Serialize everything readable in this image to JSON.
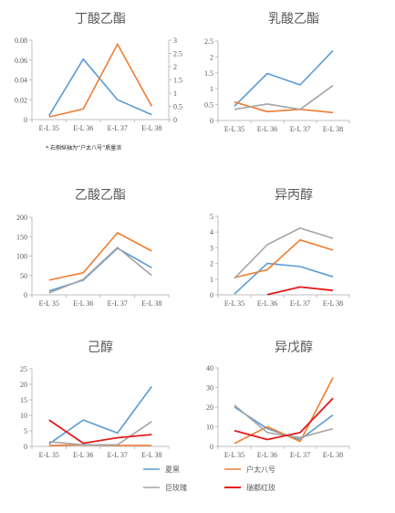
{
  "footnote": "*:右侧纵轴为“户太八号”质量浓",
  "colors": {
    "夏黑": "#5B9BD5",
    "户太八号": "#ED7D31",
    "巨玫瑰": "#A5A5A5",
    "瑞都红玫": "#E41A1C",
    "axis": "#BFBFBF",
    "text": "#595959"
  },
  "legend": [
    "夏黑",
    "户太八号",
    "巨玫瑰",
    "瑞都红玫"
  ],
  "chart_data": [
    {
      "type": "line",
      "title": "丁酸乙酯",
      "categories": [
        "E-L 35",
        "E-L 36",
        "E-L 37",
        "E-L 38"
      ],
      "ylim": [
        0,
        0.08
      ],
      "yticks": [
        "0",
        "0.02",
        "0.04",
        "0.06",
        "0.08"
      ],
      "y2lim": [
        0,
        3
      ],
      "y2ticks": [
        "0",
        "0.5",
        "1",
        "1.5",
        "2",
        "2.5",
        "3"
      ],
      "grid": false,
      "series": [
        {
          "name": "夏黑",
          "values": [
            0.004,
            0.061,
            0.02,
            0.005
          ],
          "axis": "left"
        },
        {
          "name": "户太八号",
          "values": [
            0.1,
            0.4,
            2.85,
            0.5
          ],
          "axis": "right"
        }
      ]
    },
    {
      "type": "line",
      "title": "乳酸乙酯",
      "categories": [
        "E-L 35",
        "E-L 36",
        "E-L 37",
        "E-L 38"
      ],
      "ylim": [
        0,
        2.5
      ],
      "yticks": [
        "0",
        "0.5",
        "1",
        "1.5",
        "2",
        "2.5"
      ],
      "grid": false,
      "series": [
        {
          "name": "夏黑",
          "values": [
            0.45,
            1.48,
            1.12,
            2.2
          ]
        },
        {
          "name": "户太八号",
          "values": [
            0.58,
            0.28,
            0.35,
            0.25
          ]
        },
        {
          "name": "巨玫瑰",
          "values": [
            0.35,
            0.52,
            0.35,
            1.1
          ]
        }
      ]
    },
    {
      "type": "line",
      "title": "乙酸乙酯",
      "categories": [
        "E-L 35",
        "E-L 36",
        "E-L 37",
        "E-L 38"
      ],
      "ylim": [
        0,
        200
      ],
      "yticks": [
        "0",
        "50",
        "100",
        "150",
        "200"
      ],
      "grid": false,
      "series": [
        {
          "name": "夏黑",
          "values": [
            10,
            38,
            120,
            70
          ]
        },
        {
          "name": "户太八号",
          "values": [
            38,
            57,
            160,
            113
          ]
        },
        {
          "name": "巨玫瑰",
          "values": [
            5,
            40,
            122,
            50
          ]
        }
      ]
    },
    {
      "type": "line",
      "title": "异丙醇",
      "categories": [
        "E-L 35",
        "E-L 36",
        "E-L 37",
        "E-L 38"
      ],
      "ylim": [
        0,
        5
      ],
      "yticks": [
        "0",
        "1",
        "2",
        "3",
        "4",
        "5"
      ],
      "grid": false,
      "series": [
        {
          "name": "夏黑",
          "values": [
            0.05,
            2.0,
            1.8,
            1.15
          ]
        },
        {
          "name": "户太八号",
          "values": [
            1.1,
            1.6,
            3.5,
            2.85
          ]
        },
        {
          "name": "巨玫瑰",
          "values": [
            1.05,
            3.2,
            4.25,
            3.6
          ]
        },
        {
          "name": "瑞都红玫",
          "values": [
            null,
            0.02,
            0.5,
            0.28
          ]
        }
      ]
    },
    {
      "type": "line",
      "title": "己醇",
      "categories": [
        "E-L 35",
        "E-L 36",
        "E-L 37",
        "E-L 38"
      ],
      "ylim": [
        0,
        25
      ],
      "yticks": [
        "0",
        "5",
        "10",
        "15",
        "20",
        "25"
      ],
      "grid": false,
      "series": [
        {
          "name": "夏黑",
          "values": [
            0.8,
            8.5,
            4.3,
            19.3
          ]
        },
        {
          "name": "户太八号",
          "values": [
            0.3,
            0.5,
            0.3,
            0.3
          ]
        },
        {
          "name": "巨玫瑰",
          "values": [
            1.5,
            0.5,
            0.5,
            8.0
          ]
        },
        {
          "name": "瑞都红玫",
          "values": [
            8.5,
            1.0,
            2.8,
            3.8
          ]
        }
      ]
    },
    {
      "type": "line",
      "title": "异戊醇",
      "categories": [
        "E-L 35",
        "E-L 36",
        "E-L 37",
        "E-L 38"
      ],
      "ylim": [
        0,
        40
      ],
      "yticks": [
        "0",
        "10",
        "20",
        "30",
        "40"
      ],
      "grid": false,
      "series": [
        {
          "name": "夏黑",
          "values": [
            20,
            9,
            3.5,
            16
          ]
        },
        {
          "name": "户太八号",
          "values": [
            1.5,
            10,
            2.5,
            35
          ]
        },
        {
          "name": "巨玫瑰",
          "values": [
            21,
            7,
            4.5,
            9
          ]
        },
        {
          "name": "瑞都红玫",
          "values": [
            8,
            3.5,
            7,
            24.5
          ]
        }
      ]
    }
  ]
}
